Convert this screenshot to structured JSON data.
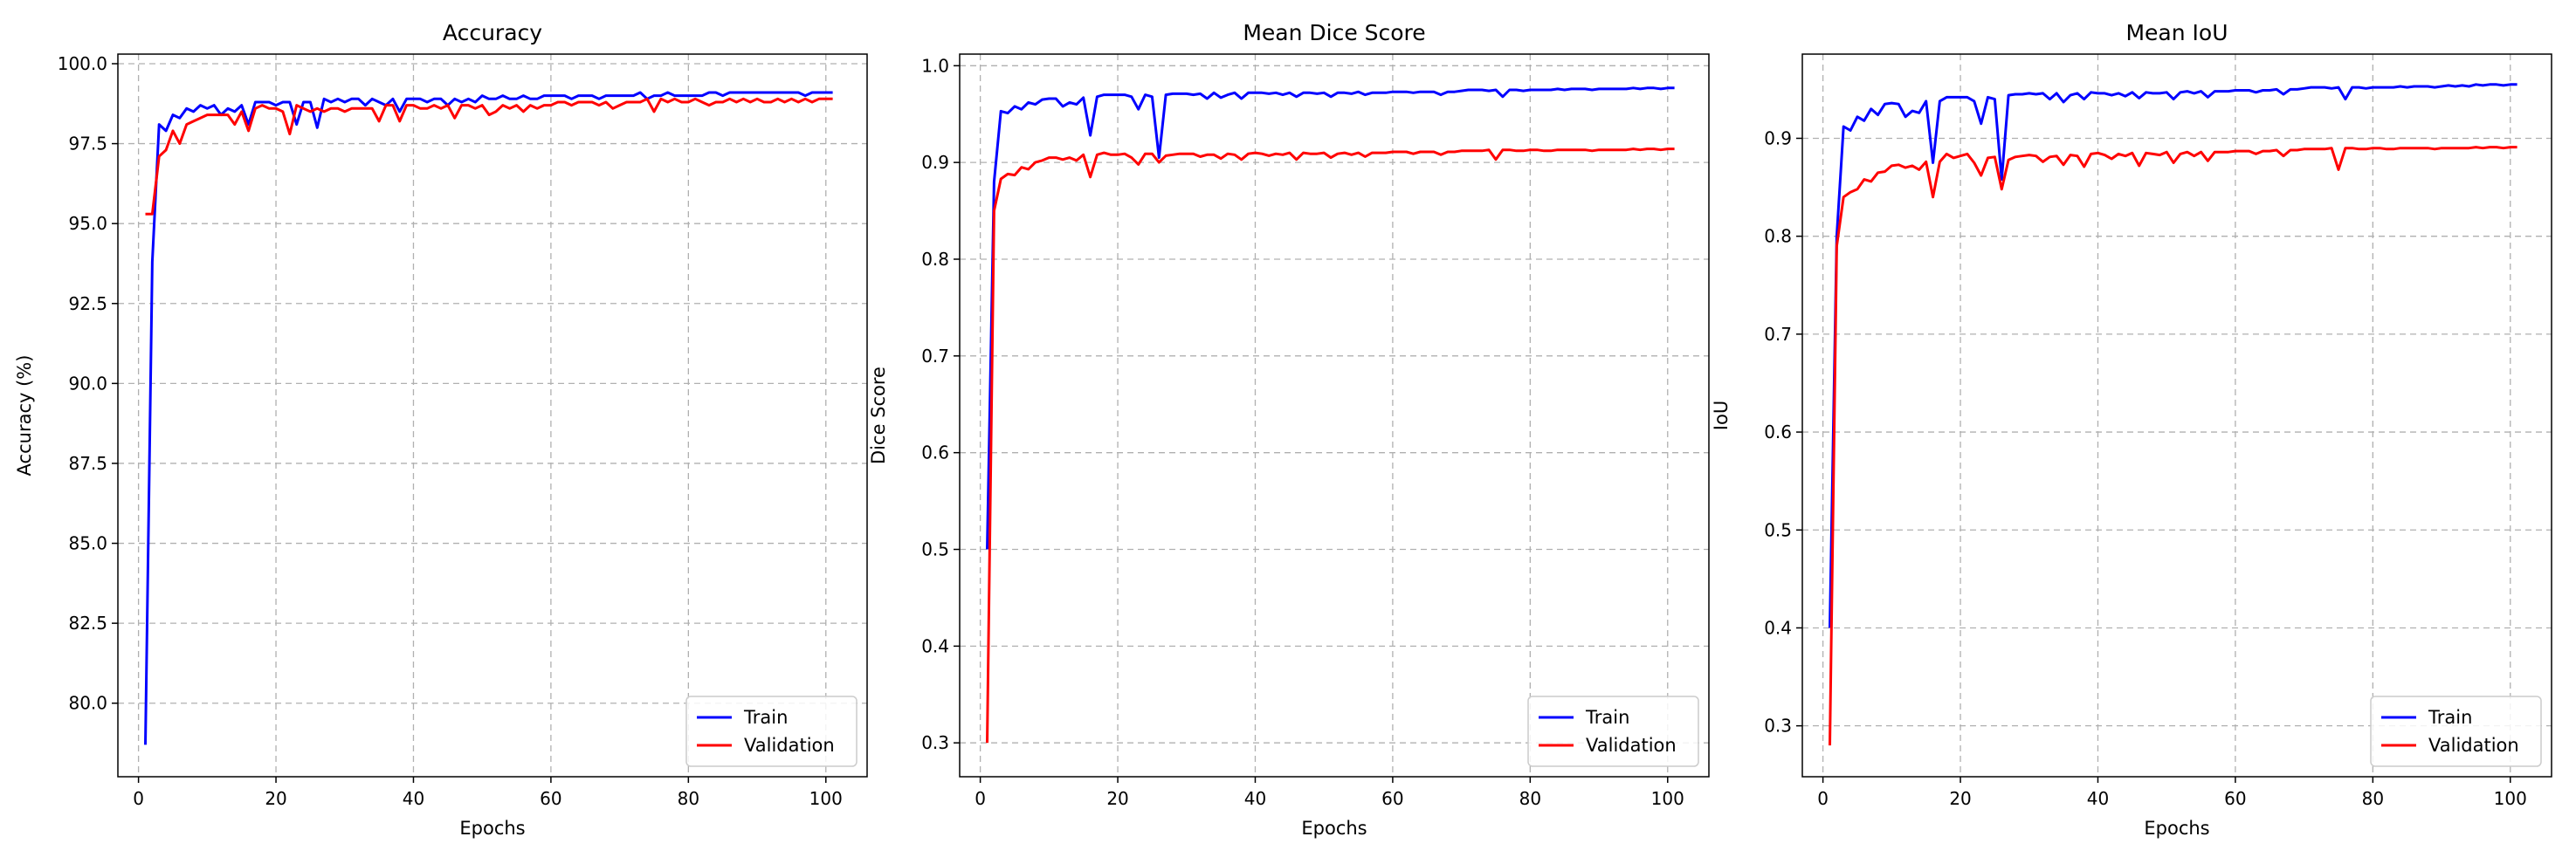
{
  "chart_data": [
    {
      "type": "line",
      "title": "Accuracy",
      "xlabel": "Epochs",
      "ylabel": "Accuracy (%)",
      "xlim": [
        -3,
        106
      ],
      "ylim": [
        77.7,
        100.3
      ],
      "xticks": [
        0,
        20,
        40,
        60,
        80,
        100
      ],
      "yticks": [
        80.0,
        82.5,
        85.0,
        87.5,
        90.0,
        92.5,
        95.0,
        97.5,
        100.0
      ],
      "ytick_decimals": 1,
      "grid": true,
      "legend_position": "lower-right",
      "x": [
        1,
        2,
        3,
        4,
        5,
        6,
        7,
        8,
        9,
        10,
        11,
        12,
        13,
        14,
        15,
        16,
        17,
        18,
        19,
        20,
        21,
        22,
        23,
        24,
        25,
        26,
        27,
        28,
        29,
        30,
        31,
        32,
        33,
        34,
        35,
        36,
        37,
        38,
        39,
        40,
        41,
        42,
        43,
        44,
        45,
        46,
        47,
        48,
        49,
        50,
        51,
        52,
        53,
        54,
        55,
        56,
        57,
        58,
        59,
        60,
        61,
        62,
        63,
        64,
        65,
        66,
        67,
        68,
        69,
        70,
        71,
        72,
        73,
        74,
        75,
        76,
        77,
        78,
        79,
        80,
        81,
        82,
        83,
        84,
        85,
        86,
        87,
        88,
        89,
        90,
        91,
        92,
        93,
        94,
        95,
        96,
        97,
        98,
        99,
        100,
        101
      ],
      "series": [
        {
          "name": "Train",
          "color": "#0000ff",
          "values": [
            78.7,
            93.8,
            98.1,
            97.9,
            98.4,
            98.3,
            98.6,
            98.5,
            98.7,
            98.6,
            98.7,
            98.4,
            98.6,
            98.5,
            98.7,
            98.1,
            98.8,
            98.8,
            98.8,
            98.7,
            98.8,
            98.8,
            98.1,
            98.8,
            98.8,
            98.0,
            98.9,
            98.8,
            98.9,
            98.8,
            98.9,
            98.9,
            98.7,
            98.9,
            98.8,
            98.7,
            98.9,
            98.5,
            98.9,
            98.9,
            98.9,
            98.8,
            98.9,
            98.9,
            98.7,
            98.9,
            98.8,
            98.9,
            98.8,
            99.0,
            98.9,
            98.9,
            99.0,
            98.9,
            98.9,
            99.0,
            98.9,
            98.9,
            99.0,
            99.0,
            99.0,
            99.0,
            98.9,
            99.0,
            99.0,
            99.0,
            98.9,
            99.0,
            99.0,
            99.0,
            99.0,
            99.0,
            99.1,
            98.9,
            99.0,
            99.0,
            99.1,
            99.0,
            99.0,
            99.0,
            99.0,
            99.0,
            99.1,
            99.1,
            99.0,
            99.1,
            99.1,
            99.1,
            99.1,
            99.1,
            99.1,
            99.1,
            99.1,
            99.1,
            99.1,
            99.1,
            99.0,
            99.1,
            99.1,
            99.1,
            99.1
          ]
        },
        {
          "name": "Validation",
          "color": "#ff0000",
          "values": [
            95.3,
            95.3,
            97.1,
            97.3,
            97.9,
            97.5,
            98.1,
            98.2,
            98.3,
            98.4,
            98.4,
            98.4,
            98.4,
            98.1,
            98.5,
            97.9,
            98.6,
            98.7,
            98.6,
            98.6,
            98.5,
            97.8,
            98.7,
            98.6,
            98.5,
            98.6,
            98.5,
            98.6,
            98.6,
            98.5,
            98.6,
            98.6,
            98.6,
            98.6,
            98.2,
            98.7,
            98.7,
            98.2,
            98.7,
            98.7,
            98.6,
            98.6,
            98.7,
            98.6,
            98.7,
            98.3,
            98.7,
            98.7,
            98.6,
            98.7,
            98.4,
            98.5,
            98.7,
            98.6,
            98.7,
            98.5,
            98.7,
            98.6,
            98.7,
            98.7,
            98.8,
            98.8,
            98.7,
            98.8,
            98.8,
            98.8,
            98.7,
            98.8,
            98.6,
            98.7,
            98.8,
            98.8,
            98.8,
            98.9,
            98.5,
            98.9,
            98.8,
            98.9,
            98.8,
            98.8,
            98.9,
            98.8,
            98.7,
            98.8,
            98.8,
            98.9,
            98.8,
            98.9,
            98.8,
            98.9,
            98.8,
            98.8,
            98.9,
            98.8,
            98.9,
            98.8,
            98.9,
            98.8,
            98.9,
            98.9,
            98.9
          ]
        }
      ]
    },
    {
      "type": "line",
      "title": "Mean Dice Score",
      "xlabel": "Epochs",
      "ylabel": "Dice Score",
      "xlim": [
        -3,
        106
      ],
      "ylim": [
        0.265,
        1.012
      ],
      "xticks": [
        0,
        20,
        40,
        60,
        80,
        100
      ],
      "yticks": [
        0.3,
        0.4,
        0.5,
        0.6,
        0.7,
        0.8,
        0.9,
        1.0
      ],
      "ytick_decimals": 1,
      "grid": true,
      "legend_position": "lower-right",
      "x": [
        1,
        2,
        3,
        4,
        5,
        6,
        7,
        8,
        9,
        10,
        11,
        12,
        13,
        14,
        15,
        16,
        17,
        18,
        19,
        20,
        21,
        22,
        23,
        24,
        25,
        26,
        27,
        28,
        29,
        30,
        31,
        32,
        33,
        34,
        35,
        36,
        37,
        38,
        39,
        40,
        41,
        42,
        43,
        44,
        45,
        46,
        47,
        48,
        49,
        50,
        51,
        52,
        53,
        54,
        55,
        56,
        57,
        58,
        59,
        60,
        61,
        62,
        63,
        64,
        65,
        66,
        67,
        68,
        69,
        70,
        71,
        72,
        73,
        74,
        75,
        76,
        77,
        78,
        79,
        80,
        81,
        82,
        83,
        84,
        85,
        86,
        87,
        88,
        89,
        90,
        91,
        92,
        93,
        94,
        95,
        96,
        97,
        98,
        99,
        100,
        101
      ],
      "series": [
        {
          "name": "Train",
          "color": "#0000ff",
          "values": [
            0.5,
            0.88,
            0.953,
            0.951,
            0.958,
            0.955,
            0.962,
            0.96,
            0.965,
            0.966,
            0.966,
            0.958,
            0.962,
            0.96,
            0.967,
            0.928,
            0.968,
            0.97,
            0.97,
            0.97,
            0.97,
            0.968,
            0.955,
            0.97,
            0.968,
            0.905,
            0.97,
            0.971,
            0.971,
            0.971,
            0.97,
            0.971,
            0.966,
            0.972,
            0.967,
            0.97,
            0.972,
            0.966,
            0.972,
            0.972,
            0.972,
            0.971,
            0.972,
            0.97,
            0.972,
            0.968,
            0.972,
            0.972,
            0.971,
            0.972,
            0.968,
            0.972,
            0.972,
            0.971,
            0.973,
            0.97,
            0.972,
            0.972,
            0.972,
            0.973,
            0.973,
            0.973,
            0.972,
            0.973,
            0.973,
            0.973,
            0.97,
            0.973,
            0.973,
            0.974,
            0.975,
            0.975,
            0.975,
            0.974,
            0.975,
            0.968,
            0.975,
            0.975,
            0.974,
            0.975,
            0.975,
            0.975,
            0.975,
            0.976,
            0.975,
            0.976,
            0.976,
            0.976,
            0.975,
            0.976,
            0.976,
            0.976,
            0.976,
            0.976,
            0.977,
            0.976,
            0.977,
            0.977,
            0.976,
            0.977,
            0.977
          ]
        },
        {
          "name": "Validation",
          "color": "#ff0000",
          "values": [
            0.3,
            0.85,
            0.883,
            0.888,
            0.887,
            0.895,
            0.893,
            0.9,
            0.902,
            0.905,
            0.905,
            0.903,
            0.905,
            0.902,
            0.908,
            0.885,
            0.908,
            0.91,
            0.908,
            0.908,
            0.909,
            0.905,
            0.898,
            0.909,
            0.909,
            0.9,
            0.907,
            0.908,
            0.909,
            0.909,
            0.909,
            0.906,
            0.908,
            0.908,
            0.904,
            0.909,
            0.908,
            0.903,
            0.909,
            0.91,
            0.909,
            0.907,
            0.909,
            0.908,
            0.91,
            0.903,
            0.91,
            0.909,
            0.909,
            0.91,
            0.905,
            0.909,
            0.91,
            0.908,
            0.91,
            0.906,
            0.91,
            0.91,
            0.91,
            0.911,
            0.911,
            0.911,
            0.909,
            0.911,
            0.911,
            0.911,
            0.908,
            0.911,
            0.911,
            0.912,
            0.912,
            0.912,
            0.912,
            0.913,
            0.903,
            0.913,
            0.913,
            0.912,
            0.912,
            0.913,
            0.913,
            0.912,
            0.912,
            0.913,
            0.913,
            0.913,
            0.913,
            0.913,
            0.912,
            0.913,
            0.913,
            0.913,
            0.913,
            0.913,
            0.914,
            0.913,
            0.914,
            0.914,
            0.913,
            0.914,
            0.914
          ]
        }
      ]
    },
    {
      "type": "line",
      "title": "Mean IoU",
      "xlabel": "Epochs",
      "ylabel": "IoU",
      "xlim": [
        -3,
        106
      ],
      "ylim": [
        0.248,
        0.986
      ],
      "xticks": [
        0,
        20,
        40,
        60,
        80,
        100
      ],
      "yticks": [
        0.3,
        0.4,
        0.5,
        0.6,
        0.7,
        0.8,
        0.9
      ],
      "ytick_decimals": 1,
      "grid": true,
      "legend_position": "lower-right",
      "x": [
        1,
        2,
        3,
        4,
        5,
        6,
        7,
        8,
        9,
        10,
        11,
        12,
        13,
        14,
        15,
        16,
        17,
        18,
        19,
        20,
        21,
        22,
        23,
        24,
        25,
        26,
        27,
        28,
        29,
        30,
        31,
        32,
        33,
        34,
        35,
        36,
        37,
        38,
        39,
        40,
        41,
        42,
        43,
        44,
        45,
        46,
        47,
        48,
        49,
        50,
        51,
        52,
        53,
        54,
        55,
        56,
        57,
        58,
        59,
        60,
        61,
        62,
        63,
        64,
        65,
        66,
        67,
        68,
        69,
        70,
        71,
        72,
        73,
        74,
        75,
        76,
        77,
        78,
        79,
        80,
        81,
        82,
        83,
        84,
        85,
        86,
        87,
        88,
        89,
        90,
        91,
        92,
        93,
        94,
        95,
        96,
        97,
        98,
        99,
        100,
        101
      ],
      "series": [
        {
          "name": "Train",
          "color": "#0000ff",
          "values": [
            0.4,
            0.8,
            0.912,
            0.908,
            0.922,
            0.918,
            0.93,
            0.924,
            0.935,
            0.936,
            0.935,
            0.922,
            0.928,
            0.926,
            0.938,
            0.875,
            0.938,
            0.942,
            0.942,
            0.942,
            0.942,
            0.938,
            0.915,
            0.942,
            0.94,
            0.858,
            0.944,
            0.945,
            0.945,
            0.946,
            0.945,
            0.946,
            0.94,
            0.946,
            0.937,
            0.944,
            0.946,
            0.94,
            0.947,
            0.946,
            0.946,
            0.944,
            0.946,
            0.943,
            0.947,
            0.941,
            0.947,
            0.946,
            0.946,
            0.947,
            0.94,
            0.947,
            0.948,
            0.946,
            0.948,
            0.942,
            0.948,
            0.948,
            0.948,
            0.949,
            0.949,
            0.949,
            0.947,
            0.949,
            0.949,
            0.95,
            0.945,
            0.95,
            0.95,
            0.951,
            0.952,
            0.952,
            0.952,
            0.951,
            0.952,
            0.94,
            0.952,
            0.952,
            0.951,
            0.952,
            0.952,
            0.952,
            0.952,
            0.953,
            0.952,
            0.953,
            0.953,
            0.953,
            0.952,
            0.953,
            0.954,
            0.953,
            0.954,
            0.953,
            0.955,
            0.954,
            0.955,
            0.955,
            0.954,
            0.955,
            0.955
          ]
        },
        {
          "name": "Validation",
          "color": "#ff0000",
          "values": [
            0.28,
            0.79,
            0.84,
            0.845,
            0.848,
            0.858,
            0.856,
            0.865,
            0.866,
            0.872,
            0.873,
            0.87,
            0.872,
            0.868,
            0.876,
            0.84,
            0.876,
            0.884,
            0.88,
            0.882,
            0.884,
            0.875,
            0.862,
            0.88,
            0.881,
            0.848,
            0.878,
            0.881,
            0.882,
            0.883,
            0.882,
            0.876,
            0.881,
            0.882,
            0.873,
            0.883,
            0.882,
            0.871,
            0.884,
            0.885,
            0.883,
            0.879,
            0.884,
            0.882,
            0.885,
            0.872,
            0.885,
            0.884,
            0.883,
            0.886,
            0.875,
            0.884,
            0.886,
            0.882,
            0.886,
            0.877,
            0.886,
            0.886,
            0.886,
            0.887,
            0.887,
            0.887,
            0.884,
            0.887,
            0.887,
            0.888,
            0.882,
            0.888,
            0.888,
            0.889,
            0.889,
            0.889,
            0.889,
            0.89,
            0.868,
            0.89,
            0.89,
            0.889,
            0.889,
            0.89,
            0.89,
            0.889,
            0.889,
            0.89,
            0.89,
            0.89,
            0.89,
            0.89,
            0.889,
            0.89,
            0.89,
            0.89,
            0.89,
            0.89,
            0.891,
            0.89,
            0.891,
            0.891,
            0.89,
            0.891,
            0.891
          ]
        }
      ]
    }
  ]
}
